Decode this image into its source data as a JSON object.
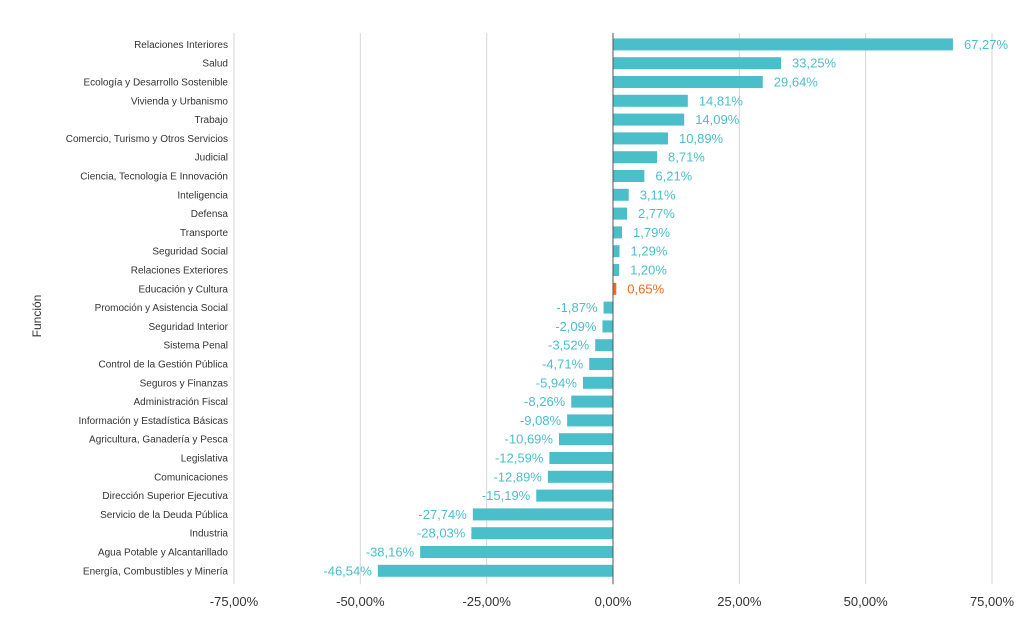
{
  "chart_data": {
    "type": "bar",
    "orientation": "horizontal",
    "title": "",
    "xlabel": "",
    "ylabel": "Función",
    "xlim": [
      -75,
      75
    ],
    "xticks": [
      -75,
      -50,
      -25,
      0,
      25,
      50,
      75
    ],
    "xtick_labels": [
      "-75,00%",
      "-50,00%",
      "-25,00%",
      "0,00%",
      "25,00%",
      "50,00%",
      "75,00%"
    ],
    "grid": true,
    "colors": {
      "bar": "#4bbfc9",
      "highlight": "#f26b1d",
      "label": "#4bbfc9",
      "highlight_label": "#f26b1d"
    },
    "highlight_index": 13,
    "categories": [
      "Relaciones Interiores",
      "Salud",
      "Ecología y Desarrollo Sostenible",
      "Vivienda y Urbanismo",
      "Trabajo",
      "Comercio, Turismo y Otros Servicios",
      "Judicial",
      "Ciencia, Tecnología E Innovación",
      "Inteligencia",
      "Defensa",
      "Transporte",
      "Seguridad Social",
      "Relaciones Exteriores",
      "Educación y Cultura",
      "Promoción y Asistencia Social",
      "Seguridad Interior",
      "Sistema Penal",
      "Control de la Gestión Pública",
      "Seguros y Finanzas",
      "Administración Fiscal",
      "Información y Estadística Básicas",
      "Agricultura, Ganadería y Pesca",
      "Legislativa",
      "Comunicaciones",
      "Dirección Superior Ejecutiva",
      "Servicio de la Deuda Pública",
      "Industria",
      "Agua Potable y Alcantarillado",
      "Energía, Combustibles y Minería"
    ],
    "values": [
      67.27,
      33.25,
      29.64,
      14.81,
      14.09,
      10.89,
      8.71,
      6.21,
      3.11,
      2.77,
      1.79,
      1.29,
      1.2,
      0.65,
      -1.87,
      -2.09,
      -3.52,
      -4.71,
      -5.94,
      -8.26,
      -9.08,
      -10.69,
      -12.59,
      -12.89,
      -15.19,
      -27.74,
      -28.03,
      -38.16,
      -46.54
    ],
    "value_labels": [
      "67,27%",
      "33,25%",
      "29,64%",
      "14,81%",
      "14,09%",
      "10,89%",
      "8,71%",
      "6,21%",
      "3,11%",
      "2,77%",
      "1,79%",
      "1,29%",
      "1,20%",
      "0,65%",
      "-1,87%",
      "-2,09%",
      "-3,52%",
      "-4,71%",
      "-5,94%",
      "-8,26%",
      "-9,08%",
      "-10,69%",
      "-12,59%",
      "-12,89%",
      "-15,19%",
      "-27,74%",
      "-28,03%",
      "-38,16%",
      "-46,54%"
    ]
  }
}
